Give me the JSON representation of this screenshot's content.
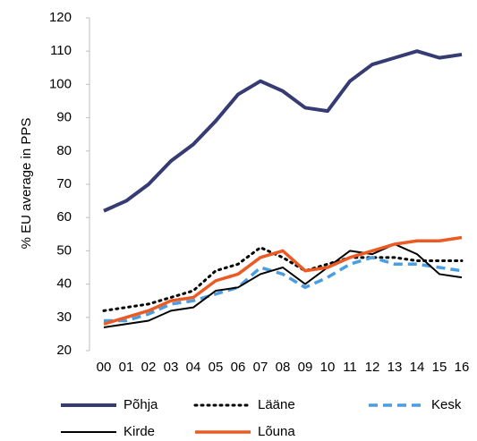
{
  "chart_data": {
    "type": "line",
    "y_label": "% EU average in PPS",
    "categories": [
      "00",
      "01",
      "02",
      "03",
      "04",
      "05",
      "06",
      "07",
      "08",
      "09",
      "10",
      "11",
      "12",
      "13",
      "14",
      "15",
      "16"
    ],
    "ylim": [
      20,
      120
    ],
    "yticks": [
      20,
      30,
      40,
      50,
      60,
      70,
      80,
      90,
      100,
      110,
      120
    ],
    "grid": false,
    "legend": "bottom",
    "series": [
      {
        "name": "Põhja",
        "color": "#363b73",
        "dash": "solid",
        "values": [
          62,
          65,
          70,
          77,
          82,
          89,
          97,
          101,
          98,
          93,
          92,
          101,
          106,
          108,
          110,
          108,
          109
        ]
      },
      {
        "name": "Lääne",
        "color": "#000000",
        "dash": "dotted",
        "values": [
          32,
          33,
          34,
          36,
          38,
          44,
          46,
          51,
          48,
          44,
          46,
          48,
          48,
          48,
          47,
          47,
          47
        ]
      },
      {
        "name": "Kesk",
        "color": "#4a9de0",
        "dash": "dashed",
        "values": [
          29,
          29,
          31,
          34,
          35,
          37,
          39,
          45,
          43,
          39,
          42,
          46,
          48,
          46,
          46,
          45,
          44
        ]
      },
      {
        "name": "Kirde",
        "color": "#000000",
        "dash": "solid",
        "values": [
          27,
          28,
          29,
          32,
          33,
          38,
          39,
          43,
          45,
          40,
          45,
          50,
          49,
          52,
          49,
          43,
          42
        ]
      },
      {
        "name": "Lõuna",
        "color": "#ec5a24",
        "dash": "solid",
        "values": [
          28,
          30,
          32,
          35,
          36,
          41,
          43,
          48,
          50,
          44,
          45,
          48,
          50,
          52,
          53,
          53,
          54
        ]
      }
    ]
  }
}
